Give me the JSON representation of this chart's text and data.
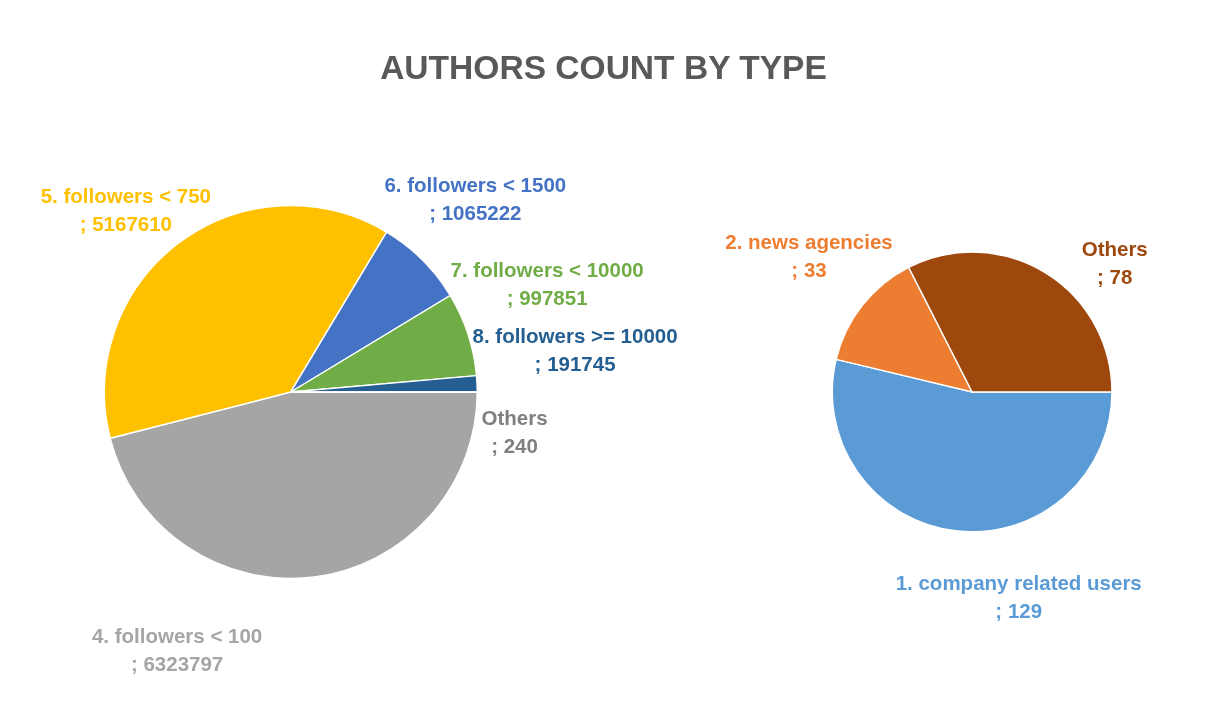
{
  "chart_data": [
    {
      "type": "pie",
      "title": "AUTHORS COUNT BY TYPE",
      "categories": [
        "4. followers < 100",
        "5. followers < 750",
        "6. followers < 1500",
        "7. followers < 10000",
        "8. followers >= 10000",
        "Others"
      ],
      "values": [
        6323797,
        5167610,
        1065222,
        997851,
        191745,
        240
      ],
      "colors": [
        "#a5a5a5",
        "#ffc000",
        "#4472c4",
        "#70ad47",
        "#255e91",
        "#7f7f7f"
      ],
      "value_labels": [
        "; 6323797",
        "; 5167610",
        "; 1065222",
        "; 997851",
        "; 191745",
        "; 240"
      ]
    },
    {
      "type": "pie",
      "categories": [
        "1. company related users",
        "2. news agencies",
        "Others"
      ],
      "values": [
        129,
        33,
        78
      ],
      "colors": [
        "#5b9bd5",
        "#ed7d31",
        "#9e480e"
      ],
      "value_labels": [
        "; 129",
        "; 33",
        "; 78"
      ]
    }
  ]
}
